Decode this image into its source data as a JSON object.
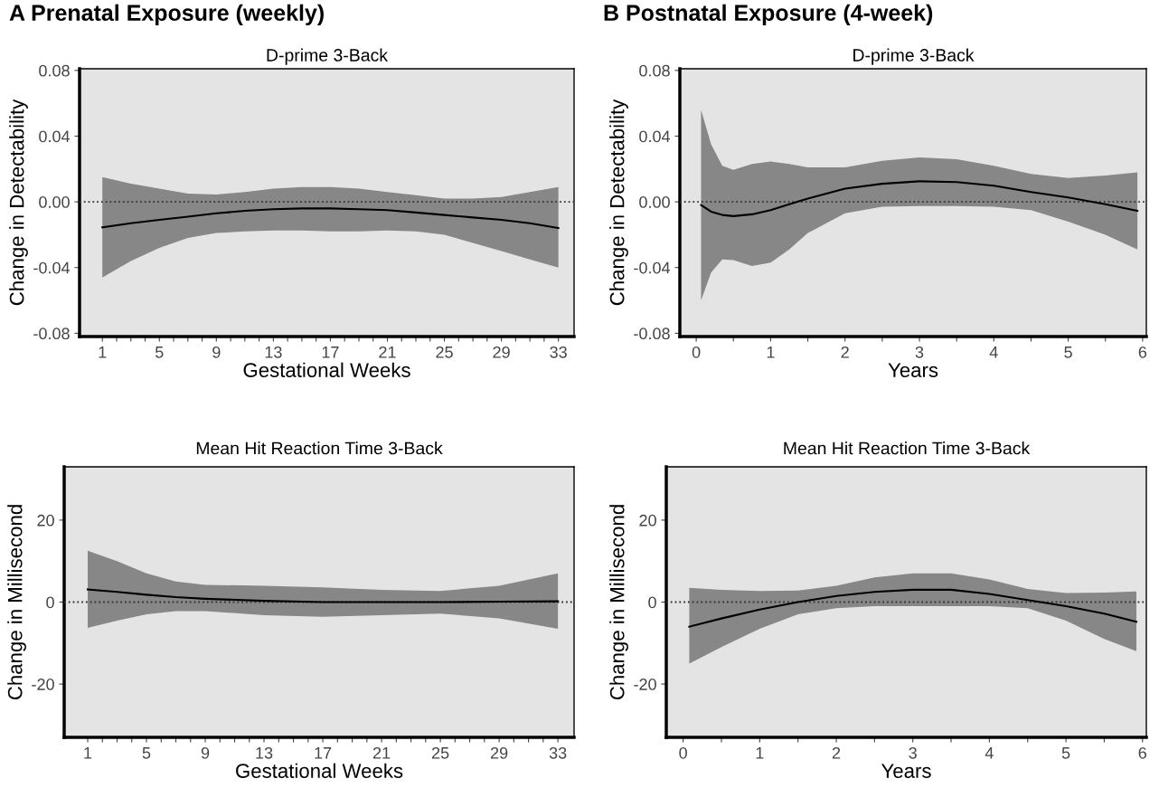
{
  "chart_data": [
    {
      "type": "line",
      "title": "A Prenatal Exposure (weekly)",
      "subtitle": "D-prime 3-Back",
      "xlabel": "Gestational Weeks",
      "ylabel": "Change in Detectability",
      "x": [
        1,
        3,
        5,
        7,
        9,
        11,
        13,
        15,
        17,
        19,
        21,
        23,
        25,
        27,
        29,
        31,
        33
      ],
      "series": [
        {
          "color": "#000000",
          "values": [
            -0.0155,
            -0.013,
            -0.011,
            -0.009,
            -0.007,
            -0.0055,
            -0.0045,
            -0.004,
            -0.004,
            -0.0045,
            -0.005,
            -0.0065,
            -0.008,
            -0.0095,
            -0.011,
            -0.013,
            -0.016
          ],
          "lower": [
            -0.046,
            -0.036,
            -0.028,
            -0.022,
            -0.019,
            -0.018,
            -0.0175,
            -0.0175,
            -0.018,
            -0.018,
            -0.0175,
            -0.018,
            -0.02,
            -0.025,
            -0.03,
            -0.035,
            -0.04
          ],
          "upper": [
            0.015,
            0.011,
            0.008,
            0.005,
            0.0045,
            0.006,
            0.008,
            0.009,
            0.009,
            0.008,
            0.006,
            0.004,
            0.002,
            0.002,
            0.003,
            0.006,
            0.009
          ]
        }
      ],
      "xlim": [
        -0.6,
        34.1
      ],
      "ylim": [
        -0.082,
        0.081
      ],
      "xticks": [
        1,
        {
          "value": 2,
          "label": null
        },
        {
          "value": 3,
          "label": null
        },
        {
          "value": 4,
          "label": null
        },
        5,
        {
          "value": 6,
          "label": null
        },
        {
          "value": 7,
          "label": null
        },
        {
          "value": 8,
          "label": null
        },
        9,
        {
          "value": 10,
          "label": null
        },
        {
          "value": 11,
          "label": null
        },
        {
          "value": 12,
          "label": null
        },
        13,
        {
          "value": 14,
          "label": null
        },
        {
          "value": 15,
          "label": null
        },
        {
          "value": 16,
          "label": null
        },
        17,
        {
          "value": 18,
          "label": null
        },
        {
          "value": 19,
          "label": null
        },
        {
          "value": 20,
          "label": null
        },
        21,
        {
          "value": 22,
          "label": null
        },
        {
          "value": 23,
          "label": null
        },
        {
          "value": 24,
          "label": null
        },
        25,
        {
          "value": 26,
          "label": null
        },
        {
          "value": 27,
          "label": null
        },
        {
          "value": 28,
          "label": null
        },
        29,
        {
          "value": 30,
          "label": null
        },
        {
          "value": 31,
          "label": null
        },
        {
          "value": 32,
          "label": null
        },
        33
      ],
      "yticks": [
        {
          "value": -0.08,
          "label": "-0.08"
        },
        {
          "value": -0.04,
          "label": "-0.04"
        },
        {
          "value": 0,
          "label": "0.00"
        },
        {
          "value": 0.04,
          "label": "0.04"
        },
        {
          "value": 0.08,
          "label": "0.08"
        }
      ],
      "ref_lines": [
        {
          "axis": "y",
          "value": 0,
          "line_style": "dotted"
        }
      ],
      "grid": false
    },
    {
      "type": "line",
      "title": "B Postnatal Exposure (4-week)",
      "subtitle": "D-prime 3-Back",
      "xlabel": "Years",
      "ylabel": "Change in Detectability",
      "x": [
        0.065,
        0.2,
        0.35,
        0.5,
        0.75,
        1.0,
        1.25,
        1.5,
        2,
        2.5,
        3,
        3.5,
        4,
        4.5,
        5,
        5.5,
        5.93
      ],
      "series": [
        {
          "color": "#000000",
          "values": [
            -0.002,
            -0.006,
            -0.008,
            -0.0087,
            -0.0076,
            -0.005,
            -0.0015,
            0.002,
            0.008,
            0.011,
            0.0125,
            0.012,
            0.0098,
            0.006,
            0.0027,
            -0.0015,
            -0.0055
          ],
          "lower": [
            -0.06,
            -0.043,
            -0.035,
            -0.0355,
            -0.039,
            -0.037,
            -0.029,
            -0.019,
            -0.007,
            -0.003,
            -0.0025,
            -0.0025,
            -0.003,
            -0.005,
            -0.012,
            -0.02,
            -0.029
          ],
          "upper": [
            0.056,
            0.035,
            0.022,
            0.0195,
            0.023,
            0.0245,
            0.023,
            0.021,
            0.021,
            0.025,
            0.027,
            0.026,
            0.022,
            0.017,
            0.0145,
            0.016,
            0.018
          ]
        }
      ],
      "xlim": [
        -0.22,
        6.05
      ],
      "ylim": [
        -0.082,
        0.081
      ],
      "xticks": [
        0,
        {
          "value": 0.5,
          "label": null
        },
        1,
        {
          "value": 1.5,
          "label": null
        },
        2,
        {
          "value": 2.5,
          "label": null
        },
        3,
        {
          "value": 3.5,
          "label": null
        },
        4,
        {
          "value": 4.5,
          "label": null
        },
        5,
        {
          "value": 5.5,
          "label": null
        },
        6
      ],
      "yticks": [
        {
          "value": -0.08,
          "label": "-0.08"
        },
        {
          "value": -0.04,
          "label": "-0.04"
        },
        {
          "value": 0,
          "label": "0.00"
        },
        {
          "value": 0.04,
          "label": "0.04"
        },
        {
          "value": 0.08,
          "label": "0.08"
        }
      ],
      "ref_lines": [
        {
          "axis": "y",
          "value": 0,
          "line_style": "dotted"
        }
      ],
      "grid": false
    },
    {
      "type": "line",
      "title": "Mean Hit Reaction Time 3-Back",
      "xlabel": "Gestational Weeks",
      "ylabel": "Change in Millisecond",
      "x": [
        1,
        3,
        5,
        7,
        9,
        13,
        17,
        21,
        25,
        29,
        33
      ],
      "series": [
        {
          "color": "#000000",
          "values": [
            3.1,
            2.5,
            1.8,
            1.2,
            0.8,
            0.3,
            0,
            0,
            0,
            0.1,
            0.2
          ],
          "lower": [
            -6.3,
            -4.5,
            -3,
            -2.2,
            -2.2,
            -3.2,
            -3.6,
            -3.2,
            -2.8,
            -4,
            -6.5
          ],
          "upper": [
            12.5,
            10,
            7,
            5,
            4.2,
            4,
            3.6,
            3,
            2.7,
            4,
            7
          ]
        }
      ],
      "xlim": [
        -0.6,
        34.1
      ],
      "ylim": [
        -33,
        33
      ],
      "xticks": [
        1,
        {
          "value": 2,
          "label": null
        },
        {
          "value": 3,
          "label": null
        },
        {
          "value": 4,
          "label": null
        },
        5,
        {
          "value": 6,
          "label": null
        },
        {
          "value": 7,
          "label": null
        },
        {
          "value": 8,
          "label": null
        },
        9,
        {
          "value": 10,
          "label": null
        },
        {
          "value": 11,
          "label": null
        },
        {
          "value": 12,
          "label": null
        },
        13,
        {
          "value": 14,
          "label": null
        },
        {
          "value": 15,
          "label": null
        },
        {
          "value": 16,
          "label": null
        },
        17,
        {
          "value": 18,
          "label": null
        },
        {
          "value": 19,
          "label": null
        },
        {
          "value": 20,
          "label": null
        },
        21,
        {
          "value": 22,
          "label": null
        },
        {
          "value": 23,
          "label": null
        },
        {
          "value": 24,
          "label": null
        },
        25,
        {
          "value": 26,
          "label": null
        },
        {
          "value": 27,
          "label": null
        },
        {
          "value": 28,
          "label": null
        },
        29,
        {
          "value": 30,
          "label": null
        },
        {
          "value": 31,
          "label": null
        },
        {
          "value": 32,
          "label": null
        },
        33
      ],
      "yticks": [
        {
          "value": -20,
          "label": "-20"
        },
        0,
        20
      ],
      "ref_lines": [
        {
          "axis": "y",
          "value": 0,
          "line_style": "dotted"
        }
      ],
      "grid": false
    },
    {
      "type": "line",
      "title": "Mean Hit Reaction Time 3-Back",
      "xlabel": "Years",
      "ylabel": "Change in Millisecond",
      "x": [
        0.08,
        0.5,
        1,
        1.5,
        2,
        2.5,
        3,
        3.5,
        4,
        4.5,
        5,
        5.5,
        5.92
      ],
      "series": [
        {
          "color": "#000000",
          "values": [
            -6,
            -4,
            -1.8,
            0,
            1.5,
            2.5,
            3,
            3,
            2,
            0.5,
            -1,
            -2.8,
            -4.8
          ],
          "lower": [
            -15,
            -11,
            -6.5,
            -3,
            -1.5,
            -1,
            -1,
            -1,
            -1,
            -1.5,
            -4.5,
            -9,
            -12
          ],
          "upper": [
            3.5,
            3.0,
            2.7,
            2.8,
            4.0,
            6.0,
            7.0,
            7.0,
            5.5,
            3.2,
            2.2,
            2.3,
            2.6
          ]
        }
      ],
      "xlim": [
        -0.22,
        6.05
      ],
      "ylim": [
        -33,
        33
      ],
      "xticks": [
        0,
        {
          "value": 0.5,
          "label": null
        },
        1,
        {
          "value": 1.5,
          "label": null
        },
        2,
        {
          "value": 2.5,
          "label": null
        },
        3,
        {
          "value": 3.5,
          "label": null
        },
        4,
        {
          "value": 4.5,
          "label": null
        },
        5,
        {
          "value": 5.5,
          "label": null
        },
        6
      ],
      "yticks": [
        {
          "value": -20,
          "label": "-20"
        },
        0,
        20
      ],
      "ref_lines": [
        {
          "axis": "y",
          "value": 0,
          "line_style": "dotted"
        }
      ],
      "grid": false
    }
  ]
}
